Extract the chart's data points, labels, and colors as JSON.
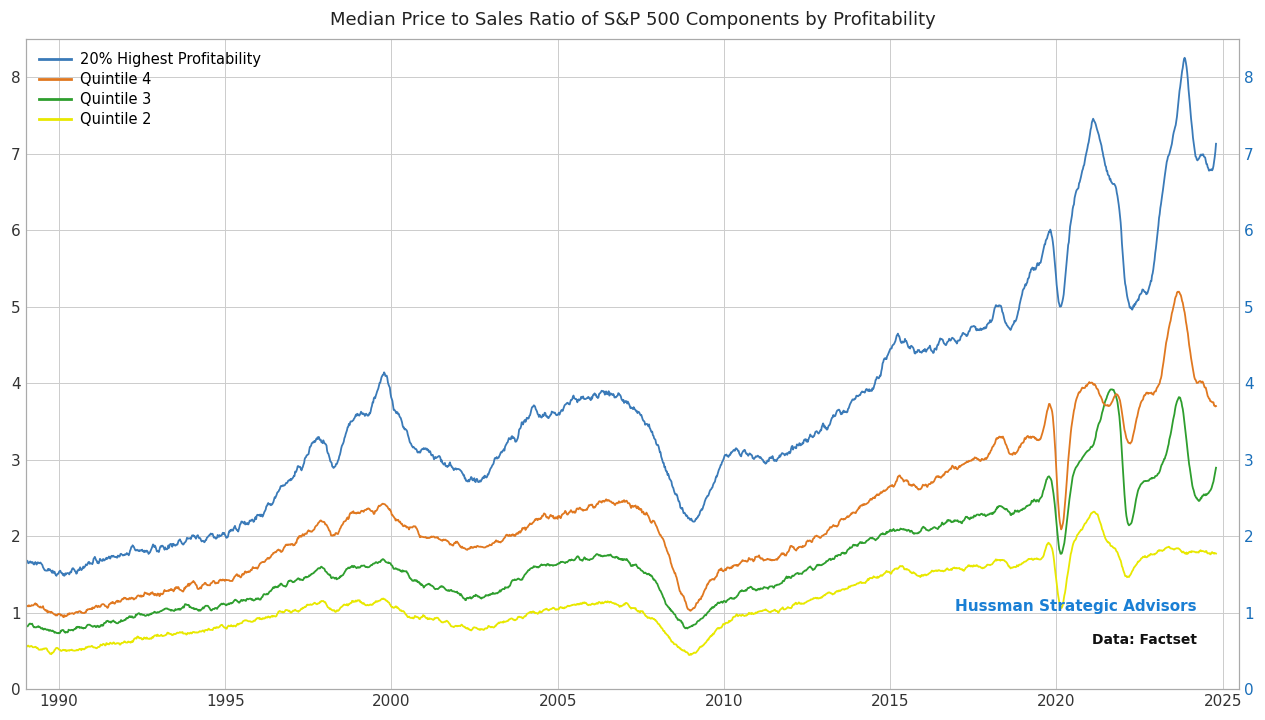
{
  "title": "Median Price to Sales Ratio of S&P 500 Components by Profitability",
  "legend_labels": [
    "20% Highest Profitability",
    "Quintile 4",
    "Quintile 3",
    "Quintile 2"
  ],
  "colors_line": [
    "#3a7ab8",
    "#e07820",
    "#2e9e2e",
    "#e8e800"
  ],
  "color_yellow": "#e8e800",
  "xlim": [
    1989.0,
    2025.5
  ],
  "ylim": [
    0,
    8.5
  ],
  "yticks": [
    0,
    1,
    2,
    3,
    4,
    5,
    6,
    7,
    8
  ],
  "xticks": [
    1990,
    1995,
    2000,
    2005,
    2010,
    2015,
    2020,
    2025
  ],
  "annotation_text1": "Hussman Strategic Advisors",
  "annotation_text2": "Data: Factset",
  "annotation_color1": "#1a7fd4",
  "annotation_color2": "#111111",
  "grid_color": "#cccccc",
  "background_color": "#ffffff",
  "line_width": 1.3,
  "blue_points": [
    [
      1989.0,
      1.7
    ],
    [
      1989.5,
      1.6
    ],
    [
      1990.0,
      1.5
    ],
    [
      1990.5,
      1.55
    ],
    [
      1991.0,
      1.65
    ],
    [
      1991.5,
      1.7
    ],
    [
      1992.0,
      1.78
    ],
    [
      1992.5,
      1.82
    ],
    [
      1993.0,
      1.85
    ],
    [
      1993.5,
      1.9
    ],
    [
      1994.0,
      1.95
    ],
    [
      1994.5,
      1.98
    ],
    [
      1995.0,
      2.05
    ],
    [
      1995.5,
      2.15
    ],
    [
      1996.0,
      2.25
    ],
    [
      1996.5,
      2.5
    ],
    [
      1997.0,
      2.8
    ],
    [
      1997.5,
      3.1
    ],
    [
      1998.0,
      3.2
    ],
    [
      1998.3,
      2.9
    ],
    [
      1998.6,
      3.3
    ],
    [
      1999.0,
      3.6
    ],
    [
      1999.5,
      3.75
    ],
    [
      1999.8,
      4.1
    ],
    [
      2000.0,
      3.8
    ],
    [
      2000.3,
      3.5
    ],
    [
      2000.6,
      3.2
    ],
    [
      2001.0,
      3.1
    ],
    [
      2001.5,
      3.0
    ],
    [
      2002.0,
      2.85
    ],
    [
      2002.3,
      2.75
    ],
    [
      2002.6,
      2.7
    ],
    [
      2003.0,
      2.9
    ],
    [
      2003.5,
      3.2
    ],
    [
      2004.0,
      3.5
    ],
    [
      2004.3,
      3.65
    ],
    [
      2004.6,
      3.55
    ],
    [
      2005.0,
      3.6
    ],
    [
      2005.3,
      3.75
    ],
    [
      2005.6,
      3.8
    ],
    [
      2006.0,
      3.85
    ],
    [
      2006.3,
      3.9
    ],
    [
      2006.6,
      3.85
    ],
    [
      2007.0,
      3.75
    ],
    [
      2007.3,
      3.65
    ],
    [
      2007.6,
      3.5
    ],
    [
      2008.0,
      3.2
    ],
    [
      2008.3,
      2.8
    ],
    [
      2008.6,
      2.5
    ],
    [
      2009.0,
      2.2
    ],
    [
      2009.3,
      2.3
    ],
    [
      2009.6,
      2.6
    ],
    [
      2010.0,
      3.0
    ],
    [
      2010.5,
      3.1
    ],
    [
      2011.0,
      3.05
    ],
    [
      2011.5,
      3.0
    ],
    [
      2012.0,
      3.15
    ],
    [
      2012.5,
      3.25
    ],
    [
      2013.0,
      3.45
    ],
    [
      2013.5,
      3.6
    ],
    [
      2014.0,
      3.8
    ],
    [
      2014.5,
      4.0
    ],
    [
      2015.0,
      4.4
    ],
    [
      2015.3,
      4.6
    ],
    [
      2015.6,
      4.45
    ],
    [
      2016.0,
      4.4
    ],
    [
      2016.5,
      4.5
    ],
    [
      2017.0,
      4.55
    ],
    [
      2017.5,
      4.7
    ],
    [
      2018.0,
      4.8
    ],
    [
      2018.3,
      5.0
    ],
    [
      2018.6,
      4.7
    ],
    [
      2019.0,
      5.2
    ],
    [
      2019.3,
      5.5
    ],
    [
      2019.6,
      5.7
    ],
    [
      2019.9,
      5.8
    ],
    [
      2020.1,
      5.0
    ],
    [
      2020.4,
      6.0
    ],
    [
      2020.6,
      6.5
    ],
    [
      2020.9,
      7.0
    ],
    [
      2021.1,
      7.4
    ],
    [
      2021.3,
      7.2
    ],
    [
      2021.5,
      6.8
    ],
    [
      2021.7,
      6.6
    ],
    [
      2021.9,
      6.2
    ],
    [
      2022.1,
      5.2
    ],
    [
      2022.4,
      5.0
    ],
    [
      2022.6,
      5.2
    ],
    [
      2022.9,
      5.5
    ],
    [
      2023.1,
      6.2
    ],
    [
      2023.3,
      6.8
    ],
    [
      2023.5,
      7.2
    ],
    [
      2023.7,
      7.8
    ],
    [
      2023.9,
      8.2
    ],
    [
      2024.1,
      7.2
    ],
    [
      2024.4,
      7.0
    ],
    [
      2024.6,
      6.8
    ],
    [
      2024.8,
      7.1
    ]
  ],
  "orange_points": [
    [
      1989.0,
      1.1
    ],
    [
      1989.5,
      1.05
    ],
    [
      1990.0,
      0.98
    ],
    [
      1990.5,
      1.0
    ],
    [
      1991.0,
      1.05
    ],
    [
      1991.5,
      1.1
    ],
    [
      1992.0,
      1.15
    ],
    [
      1992.5,
      1.2
    ],
    [
      1993.0,
      1.25
    ],
    [
      1993.5,
      1.3
    ],
    [
      1994.0,
      1.35
    ],
    [
      1994.5,
      1.38
    ],
    [
      1995.0,
      1.42
    ],
    [
      1995.5,
      1.5
    ],
    [
      1996.0,
      1.6
    ],
    [
      1996.5,
      1.75
    ],
    [
      1997.0,
      1.9
    ],
    [
      1997.5,
      2.05
    ],
    [
      1998.0,
      2.15
    ],
    [
      1998.3,
      2.0
    ],
    [
      1998.6,
      2.2
    ],
    [
      1999.0,
      2.3
    ],
    [
      1999.5,
      2.35
    ],
    [
      1999.8,
      2.4
    ],
    [
      2000.0,
      2.3
    ],
    [
      2000.3,
      2.2
    ],
    [
      2000.6,
      2.1
    ],
    [
      2001.0,
      2.0
    ],
    [
      2001.5,
      1.95
    ],
    [
      2002.0,
      1.9
    ],
    [
      2002.3,
      1.85
    ],
    [
      2002.6,
      1.85
    ],
    [
      2003.0,
      1.9
    ],
    [
      2003.5,
      2.0
    ],
    [
      2004.0,
      2.1
    ],
    [
      2004.3,
      2.2
    ],
    [
      2004.6,
      2.25
    ],
    [
      2005.0,
      2.25
    ],
    [
      2005.3,
      2.3
    ],
    [
      2005.6,
      2.35
    ],
    [
      2006.0,
      2.4
    ],
    [
      2006.3,
      2.45
    ],
    [
      2006.6,
      2.45
    ],
    [
      2007.0,
      2.45
    ],
    [
      2007.3,
      2.4
    ],
    [
      2007.6,
      2.3
    ],
    [
      2008.0,
      2.1
    ],
    [
      2008.3,
      1.8
    ],
    [
      2008.6,
      1.4
    ],
    [
      2009.0,
      1.05
    ],
    [
      2009.3,
      1.2
    ],
    [
      2009.6,
      1.4
    ],
    [
      2010.0,
      1.55
    ],
    [
      2010.5,
      1.65
    ],
    [
      2011.0,
      1.7
    ],
    [
      2011.5,
      1.7
    ],
    [
      2012.0,
      1.8
    ],
    [
      2012.5,
      1.9
    ],
    [
      2013.0,
      2.05
    ],
    [
      2013.5,
      2.2
    ],
    [
      2014.0,
      2.35
    ],
    [
      2014.5,
      2.5
    ],
    [
      2015.0,
      2.65
    ],
    [
      2015.3,
      2.75
    ],
    [
      2015.6,
      2.7
    ],
    [
      2016.0,
      2.65
    ],
    [
      2016.5,
      2.8
    ],
    [
      2017.0,
      2.9
    ],
    [
      2017.5,
      3.0
    ],
    [
      2018.0,
      3.1
    ],
    [
      2018.3,
      3.3
    ],
    [
      2018.6,
      3.1
    ],
    [
      2019.0,
      3.2
    ],
    [
      2019.3,
      3.3
    ],
    [
      2019.6,
      3.4
    ],
    [
      2019.9,
      3.5
    ],
    [
      2020.1,
      2.2
    ],
    [
      2020.4,
      3.2
    ],
    [
      2020.6,
      3.8
    ],
    [
      2020.9,
      4.0
    ],
    [
      2021.1,
      4.0
    ],
    [
      2021.3,
      3.8
    ],
    [
      2021.5,
      3.7
    ],
    [
      2021.7,
      3.8
    ],
    [
      2021.9,
      3.8
    ],
    [
      2022.1,
      3.3
    ],
    [
      2022.4,
      3.5
    ],
    [
      2022.6,
      3.8
    ],
    [
      2022.9,
      3.9
    ],
    [
      2023.1,
      4.0
    ],
    [
      2023.3,
      4.5
    ],
    [
      2023.5,
      5.0
    ],
    [
      2023.7,
      5.2
    ],
    [
      2023.9,
      4.8
    ],
    [
      2024.1,
      4.2
    ],
    [
      2024.4,
      4.0
    ],
    [
      2024.6,
      3.8
    ],
    [
      2024.8,
      3.7
    ]
  ],
  "green_points": [
    [
      1989.0,
      0.85
    ],
    [
      1989.5,
      0.8
    ],
    [
      1990.0,
      0.75
    ],
    [
      1990.5,
      0.78
    ],
    [
      1991.0,
      0.82
    ],
    [
      1991.5,
      0.88
    ],
    [
      1992.0,
      0.92
    ],
    [
      1992.5,
      0.96
    ],
    [
      1993.0,
      1.0
    ],
    [
      1993.5,
      1.03
    ],
    [
      1994.0,
      1.05
    ],
    [
      1994.5,
      1.07
    ],
    [
      1995.0,
      1.1
    ],
    [
      1995.5,
      1.15
    ],
    [
      1996.0,
      1.2
    ],
    [
      1996.5,
      1.3
    ],
    [
      1997.0,
      1.4
    ],
    [
      1997.5,
      1.5
    ],
    [
      1998.0,
      1.55
    ],
    [
      1998.3,
      1.45
    ],
    [
      1998.6,
      1.55
    ],
    [
      1999.0,
      1.6
    ],
    [
      1999.5,
      1.65
    ],
    [
      1999.8,
      1.68
    ],
    [
      2000.0,
      1.62
    ],
    [
      2000.3,
      1.55
    ],
    [
      2000.6,
      1.45
    ],
    [
      2001.0,
      1.38
    ],
    [
      2001.5,
      1.32
    ],
    [
      2002.0,
      1.25
    ],
    [
      2002.3,
      1.2
    ],
    [
      2002.6,
      1.18
    ],
    [
      2003.0,
      1.22
    ],
    [
      2003.5,
      1.35
    ],
    [
      2004.0,
      1.5
    ],
    [
      2004.3,
      1.58
    ],
    [
      2004.6,
      1.62
    ],
    [
      2005.0,
      1.65
    ],
    [
      2005.3,
      1.68
    ],
    [
      2005.6,
      1.7
    ],
    [
      2006.0,
      1.72
    ],
    [
      2006.3,
      1.75
    ],
    [
      2006.6,
      1.73
    ],
    [
      2007.0,
      1.7
    ],
    [
      2007.3,
      1.62
    ],
    [
      2007.6,
      1.52
    ],
    [
      2008.0,
      1.35
    ],
    [
      2008.3,
      1.1
    ],
    [
      2008.6,
      0.92
    ],
    [
      2009.0,
      0.82
    ],
    [
      2009.3,
      0.92
    ],
    [
      2009.6,
      1.05
    ],
    [
      2010.0,
      1.15
    ],
    [
      2010.5,
      1.25
    ],
    [
      2011.0,
      1.32
    ],
    [
      2011.5,
      1.35
    ],
    [
      2012.0,
      1.45
    ],
    [
      2012.5,
      1.55
    ],
    [
      2013.0,
      1.65
    ],
    [
      2013.5,
      1.75
    ],
    [
      2014.0,
      1.88
    ],
    [
      2014.5,
      1.95
    ],
    [
      2015.0,
      2.05
    ],
    [
      2015.3,
      2.1
    ],
    [
      2015.6,
      2.05
    ],
    [
      2016.0,
      2.05
    ],
    [
      2016.5,
      2.15
    ],
    [
      2017.0,
      2.2
    ],
    [
      2017.5,
      2.25
    ],
    [
      2018.0,
      2.3
    ],
    [
      2018.3,
      2.4
    ],
    [
      2018.6,
      2.3
    ],
    [
      2019.0,
      2.35
    ],
    [
      2019.3,
      2.45
    ],
    [
      2019.6,
      2.55
    ],
    [
      2019.9,
      2.6
    ],
    [
      2020.1,
      1.8
    ],
    [
      2020.4,
      2.5
    ],
    [
      2020.6,
      2.9
    ],
    [
      2020.9,
      3.1
    ],
    [
      2021.1,
      3.2
    ],
    [
      2021.3,
      3.5
    ],
    [
      2021.5,
      3.8
    ],
    [
      2021.7,
      3.9
    ],
    [
      2021.9,
      3.5
    ],
    [
      2022.1,
      2.3
    ],
    [
      2022.4,
      2.5
    ],
    [
      2022.6,
      2.7
    ],
    [
      2022.9,
      2.8
    ],
    [
      2023.1,
      2.85
    ],
    [
      2023.3,
      3.1
    ],
    [
      2023.5,
      3.5
    ],
    [
      2023.7,
      3.8
    ],
    [
      2023.9,
      3.3
    ],
    [
      2024.1,
      2.6
    ],
    [
      2024.4,
      2.5
    ],
    [
      2024.6,
      2.6
    ],
    [
      2024.8,
      2.9
    ]
  ],
  "yellow_points": [
    [
      1989.0,
      0.58
    ],
    [
      1989.5,
      0.53
    ],
    [
      1990.0,
      0.5
    ],
    [
      1990.5,
      0.52
    ],
    [
      1991.0,
      0.55
    ],
    [
      1991.5,
      0.58
    ],
    [
      1992.0,
      0.62
    ],
    [
      1992.5,
      0.66
    ],
    [
      1993.0,
      0.7
    ],
    [
      1993.5,
      0.73
    ],
    [
      1994.0,
      0.75
    ],
    [
      1994.5,
      0.77
    ],
    [
      1995.0,
      0.8
    ],
    [
      1995.5,
      0.85
    ],
    [
      1996.0,
      0.9
    ],
    [
      1996.5,
      0.97
    ],
    [
      1997.0,
      1.02
    ],
    [
      1997.5,
      1.08
    ],
    [
      1998.0,
      1.1
    ],
    [
      1998.3,
      1.02
    ],
    [
      1998.6,
      1.1
    ],
    [
      1999.0,
      1.12
    ],
    [
      1999.5,
      1.13
    ],
    [
      1999.8,
      1.15
    ],
    [
      2000.0,
      1.1
    ],
    [
      2000.3,
      1.03
    ],
    [
      2000.6,
      0.97
    ],
    [
      2001.0,
      0.92
    ],
    [
      2001.5,
      0.88
    ],
    [
      2002.0,
      0.83
    ],
    [
      2002.3,
      0.8
    ],
    [
      2002.6,
      0.78
    ],
    [
      2003.0,
      0.82
    ],
    [
      2003.5,
      0.9
    ],
    [
      2004.0,
      0.97
    ],
    [
      2004.3,
      1.02
    ],
    [
      2004.6,
      1.05
    ],
    [
      2005.0,
      1.05
    ],
    [
      2005.3,
      1.08
    ],
    [
      2005.6,
      1.1
    ],
    [
      2006.0,
      1.12
    ],
    [
      2006.3,
      1.13
    ],
    [
      2006.6,
      1.12
    ],
    [
      2007.0,
      1.1
    ],
    [
      2007.3,
      1.05
    ],
    [
      2007.6,
      0.98
    ],
    [
      2008.0,
      0.88
    ],
    [
      2008.3,
      0.7
    ],
    [
      2008.6,
      0.55
    ],
    [
      2009.0,
      0.48
    ],
    [
      2009.3,
      0.55
    ],
    [
      2009.6,
      0.7
    ],
    [
      2010.0,
      0.85
    ],
    [
      2010.5,
      0.95
    ],
    [
      2011.0,
      1.0
    ],
    [
      2011.5,
      1.02
    ],
    [
      2012.0,
      1.08
    ],
    [
      2012.5,
      1.15
    ],
    [
      2013.0,
      1.22
    ],
    [
      2013.5,
      1.3
    ],
    [
      2014.0,
      1.38
    ],
    [
      2014.5,
      1.45
    ],
    [
      2015.0,
      1.55
    ],
    [
      2015.3,
      1.58
    ],
    [
      2015.6,
      1.52
    ],
    [
      2016.0,
      1.5
    ],
    [
      2016.5,
      1.55
    ],
    [
      2017.0,
      1.57
    ],
    [
      2017.5,
      1.6
    ],
    [
      2018.0,
      1.62
    ],
    [
      2018.3,
      1.7
    ],
    [
      2018.6,
      1.6
    ],
    [
      2019.0,
      1.65
    ],
    [
      2019.3,
      1.7
    ],
    [
      2019.6,
      1.75
    ],
    [
      2019.9,
      1.78
    ],
    [
      2020.1,
      1.1
    ],
    [
      2020.4,
      1.7
    ],
    [
      2020.6,
      2.0
    ],
    [
      2020.9,
      2.2
    ],
    [
      2021.1,
      2.3
    ],
    [
      2021.3,
      2.2
    ],
    [
      2021.5,
      1.95
    ],
    [
      2021.7,
      1.85
    ],
    [
      2021.9,
      1.7
    ],
    [
      2022.1,
      1.5
    ],
    [
      2022.4,
      1.6
    ],
    [
      2022.6,
      1.7
    ],
    [
      2022.9,
      1.75
    ],
    [
      2023.1,
      1.78
    ],
    [
      2023.3,
      1.82
    ],
    [
      2023.5,
      1.85
    ],
    [
      2023.7,
      1.82
    ],
    [
      2023.9,
      1.78
    ],
    [
      2024.1,
      1.8
    ],
    [
      2024.4,
      1.8
    ],
    [
      2024.6,
      1.78
    ],
    [
      2024.8,
      1.78
    ]
  ]
}
